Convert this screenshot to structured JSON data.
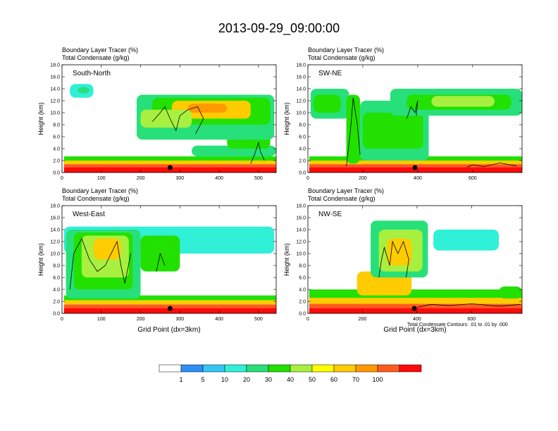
{
  "title": "2013-09-29_09:00:00",
  "colors": {
    "levels": [
      "#ffffff",
      "#2e8ef5",
      "#34c6f7",
      "#30f0d8",
      "#28e07a",
      "#22e000",
      "#a8f040",
      "#ffff00",
      "#ffcc00",
      "#ff9900",
      "#ff5a1e",
      "#ff0a0a"
    ],
    "contour": "#000000",
    "marker": "#000000"
  },
  "footnote": "Total Condensate Contours: .01 to .01 by .000",
  "colorbar": {
    "labels": [
      "1",
      "5",
      "10",
      "20",
      "30",
      "40",
      "50",
      "60",
      "70",
      "100"
    ]
  },
  "chart_data": [
    {
      "type": "heatmap",
      "panel_title": "South-North",
      "field_labels": [
        "Boundary Layer Tracer   (%)",
        "Total Condensate   (g/kg)"
      ],
      "ylabel": "Height (km)",
      "xlabel": "",
      "xlim": [
        0,
        545
      ],
      "ylim": [
        0,
        18
      ],
      "xticks": [
        0,
        100,
        200,
        300,
        400,
        500
      ],
      "yticks": [
        "0.0",
        "2.0",
        "4.0",
        "6.0",
        "8.0",
        "10.0",
        "12.0",
        "14.0",
        "16.0",
        "18.0"
      ],
      "marker_x": 275,
      "blobs": [
        {
          "x": [
            5,
            545
          ],
          "y": [
            0,
            0.9
          ],
          "v": 100
        },
        {
          "x": [
            5,
            545
          ],
          "y": [
            0.9,
            1.4
          ],
          "v": 70
        },
        {
          "x": [
            5,
            545
          ],
          "y": [
            1.4,
            2.0
          ],
          "v": 50
        },
        {
          "x": [
            5,
            545
          ],
          "y": [
            2.0,
            2.7
          ],
          "v": 20
        },
        {
          "x": [
            330,
            545
          ],
          "y": [
            2.7,
            4.5
          ],
          "v": 10
        },
        {
          "x": [
            420,
            530
          ],
          "y": [
            4.0,
            7.5
          ],
          "v": 20
        },
        {
          "x": [
            20,
            80
          ],
          "y": [
            12.5,
            14.8
          ],
          "v": 5
        },
        {
          "x": [
            40,
            70
          ],
          "y": [
            13.2,
            14.3
          ],
          "v": 10
        },
        {
          "x": [
            190,
            540
          ],
          "y": [
            5.5,
            13.0
          ],
          "v": 10
        },
        {
          "x": [
            230,
            530
          ],
          "y": [
            8.0,
            12.5
          ],
          "v": 20
        },
        {
          "x": [
            280,
            480
          ],
          "y": [
            9.0,
            12.0
          ],
          "v": 50
        },
        {
          "x": [
            320,
            420
          ],
          "y": [
            10.0,
            11.5
          ],
          "v": 60
        },
        {
          "x": [
            200,
            330
          ],
          "y": [
            7.5,
            10.5
          ],
          "v": 30
        }
      ],
      "contours": [
        [
          [
            230,
            8.5
          ],
          [
            250,
            10
          ],
          [
            262,
            11
          ],
          [
            275,
            9
          ],
          [
            290,
            7
          ],
          [
            300,
            9.5
          ],
          [
            320,
            10.5
          ],
          [
            345,
            11
          ],
          [
            360,
            9
          ],
          [
            340,
            6.5
          ]
        ],
        [
          [
            480,
            1.5
          ],
          [
            490,
            3
          ],
          [
            500,
            5
          ],
          [
            505,
            3.5
          ],
          [
            515,
            2
          ]
        ]
      ]
    },
    {
      "type": "heatmap",
      "panel_title": "SW-NE",
      "field_labels": [
        "Boundary Layer Tracer   (%)",
        "Total Condensate   (g/kg)"
      ],
      "ylabel": "Height (km)",
      "xlabel": "",
      "xlim": [
        0,
        780
      ],
      "ylim": [
        0,
        18
      ],
      "xticks": [
        0,
        200,
        400,
        600
      ],
      "yticks": [
        "0.0",
        "2.0",
        "4.0",
        "6.0",
        "8.0",
        "10.0",
        "12.0",
        "14.0",
        "16.0",
        "18.0"
      ],
      "marker_x": 390,
      "blobs": [
        {
          "x": [
            5,
            780
          ],
          "y": [
            0,
            0.9
          ],
          "v": 100
        },
        {
          "x": [
            5,
            780
          ],
          "y": [
            0.9,
            1.4
          ],
          "v": 70
        },
        {
          "x": [
            5,
            780
          ],
          "y": [
            1.4,
            2.0
          ],
          "v": 50
        },
        {
          "x": [
            5,
            780
          ],
          "y": [
            2.0,
            2.7
          ],
          "v": 20
        },
        {
          "x": [
            10,
            150
          ],
          "y": [
            9.0,
            14.0
          ],
          "v": 10
        },
        {
          "x": [
            20,
            120
          ],
          "y": [
            10.0,
            13.0
          ],
          "v": 20
        },
        {
          "x": [
            140,
            190
          ],
          "y": [
            1.5,
            13.0
          ],
          "v": 20
        },
        {
          "x": [
            190,
            440
          ],
          "y": [
            2.0,
            12.0
          ],
          "v": 10
        },
        {
          "x": [
            200,
            420
          ],
          "y": [
            4.0,
            10.0
          ],
          "v": 20
        },
        {
          "x": [
            300,
            780
          ],
          "y": [
            9.5,
            14.0
          ],
          "v": 10
        },
        {
          "x": [
            360,
            740
          ],
          "y": [
            10.5,
            13.0
          ],
          "v": 20
        },
        {
          "x": [
            450,
            680
          ],
          "y": [
            11.0,
            12.8
          ],
          "v": 30
        }
      ],
      "contours": [
        [
          [
            140,
            1.0
          ],
          [
            155,
            7
          ],
          [
            165,
            12.5
          ],
          [
            180,
            8
          ],
          [
            190,
            3
          ]
        ],
        [
          [
            360,
            9
          ],
          [
            375,
            11
          ],
          [
            390,
            10
          ],
          [
            400,
            12
          ],
          [
            395,
            9.5
          ]
        ],
        [
          [
            580,
            0.9
          ],
          [
            600,
            1.3
          ],
          [
            640,
            1.0
          ],
          [
            700,
            1.6
          ],
          [
            760,
            1.1
          ]
        ]
      ]
    },
    {
      "type": "heatmap",
      "panel_title": "West-East",
      "field_labels": [
        "Boundary Layer Tracer   (%)",
        "Total Condensate   (g/kg)"
      ],
      "ylabel": "Height (km)",
      "xlabel": "Grid Point (dx=3km)",
      "xlim": [
        0,
        545
      ],
      "ylim": [
        0,
        18
      ],
      "xticks": [
        0,
        100,
        200,
        300,
        400,
        500
      ],
      "yticks": [
        "0.0",
        "2.0",
        "4.0",
        "6.0",
        "8.0",
        "10.0",
        "12.0",
        "14.0",
        "16.0",
        "18.0"
      ],
      "marker_x": 275,
      "blobs": [
        {
          "x": [
            5,
            545
          ],
          "y": [
            0,
            0.9
          ],
          "v": 100
        },
        {
          "x": [
            5,
            545
          ],
          "y": [
            0.9,
            1.5
          ],
          "v": 70
        },
        {
          "x": [
            5,
            545
          ],
          "y": [
            1.5,
            2.2
          ],
          "v": 50
        },
        {
          "x": [
            5,
            545
          ],
          "y": [
            2.2,
            3.0
          ],
          "v": 20
        },
        {
          "x": [
            5,
            540
          ],
          "y": [
            10.0,
            14.5
          ],
          "v": 5
        },
        {
          "x": [
            10,
            200
          ],
          "y": [
            2.5,
            14.0
          ],
          "v": 10
        },
        {
          "x": [
            30,
            180
          ],
          "y": [
            4.0,
            13.5
          ],
          "v": 20
        },
        {
          "x": [
            50,
            170
          ],
          "y": [
            6.0,
            13.0
          ],
          "v": 30
        },
        {
          "x": [
            80,
            150
          ],
          "y": [
            9.0,
            12.5
          ],
          "v": 50
        },
        {
          "x": [
            200,
            300
          ],
          "y": [
            7.0,
            13.0
          ],
          "v": 20
        }
      ],
      "contours": [
        [
          [
            20,
            4
          ],
          [
            30,
            10
          ],
          [
            50,
            12.5
          ],
          [
            70,
            9
          ],
          [
            90,
            7
          ],
          [
            110,
            8
          ],
          [
            125,
            10
          ],
          [
            140,
            12
          ],
          [
            150,
            8
          ],
          [
            160,
            5
          ],
          [
            175,
            10
          ]
        ],
        [
          [
            240,
            7
          ],
          [
            250,
            10
          ],
          [
            262,
            8
          ]
        ]
      ]
    },
    {
      "type": "heatmap",
      "panel_title": "NW-SE",
      "field_labels": [
        "Boundary Layer Tracer   (%)",
        "Total Condensate   (g/kg)"
      ],
      "ylabel": "Height (km)",
      "xlabel": "Grid Point (dx=3km)",
      "xlim": [
        0,
        785
      ],
      "ylim": [
        0,
        18
      ],
      "xticks": [
        0,
        200,
        400,
        600
      ],
      "yticks": [
        "0.0",
        "2.0",
        "4.0",
        "6.0",
        "8.0",
        "10.0",
        "12.0",
        "14.0",
        "16.0",
        "18.0"
      ],
      "marker_x": 390,
      "blobs": [
        {
          "x": [
            5,
            785
          ],
          "y": [
            0,
            0.9
          ],
          "v": 100
        },
        {
          "x": [
            5,
            785
          ],
          "y": [
            0.9,
            1.6
          ],
          "v": 70
        },
        {
          "x": [
            5,
            785
          ],
          "y": [
            1.6,
            2.6
          ],
          "v": 50
        },
        {
          "x": [
            5,
            785
          ],
          "y": [
            2.6,
            4.0
          ],
          "v": 20
        },
        {
          "x": [
            180,
            380
          ],
          "y": [
            3.0,
            7.0
          ],
          "v": 50
        },
        {
          "x": [
            230,
            440
          ],
          "y": [
            6.0,
            15.5
          ],
          "v": 10
        },
        {
          "x": [
            260,
            420
          ],
          "y": [
            7.0,
            14.0
          ],
          "v": 30
        },
        {
          "x": [
            290,
            380
          ],
          "y": [
            8.0,
            12.5
          ],
          "v": 50
        },
        {
          "x": [
            460,
            700
          ],
          "y": [
            10.5,
            14.0
          ],
          "v": 5
        },
        {
          "x": [
            700,
            785
          ],
          "y": [
            2.5,
            4.5
          ],
          "v": 20
        }
      ],
      "contours": [
        [
          [
            260,
            6
          ],
          [
            270,
            9
          ],
          [
            280,
            11
          ],
          [
            300,
            8
          ],
          [
            310,
            12
          ],
          [
            330,
            10
          ],
          [
            350,
            12
          ],
          [
            370,
            9
          ],
          [
            360,
            6
          ]
        ],
        [
          [
            400,
            1
          ],
          [
            450,
            1.5
          ],
          [
            520,
            1.3
          ],
          [
            600,
            1.6
          ],
          [
            700,
            1.2
          ],
          [
            780,
            1.5
          ]
        ]
      ]
    }
  ]
}
